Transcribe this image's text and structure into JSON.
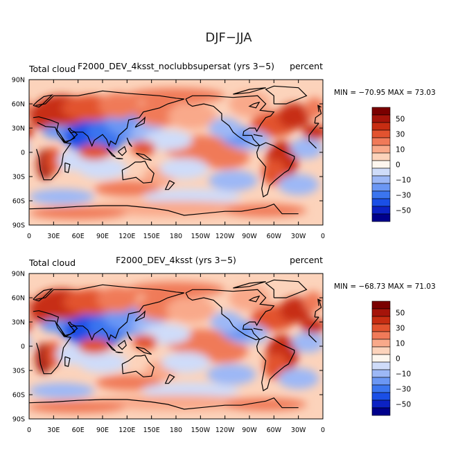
{
  "figure_title": "DJF−JJA",
  "colors": {
    "levels": [
      "#00008b",
      "#0c22c4",
      "#1a4fe6",
      "#3b75ef",
      "#6b97f4",
      "#9db8f6",
      "#cfdcf9",
      "#fdf6ee",
      "#fcd3bb",
      "#f9a98a",
      "#f07a59",
      "#e2532f",
      "#c72d12",
      "#a5140a",
      "#7a0000"
    ],
    "land_outline": "#000000"
  },
  "chart_data": [
    {
      "type": "heatmap",
      "title_left": "Total cloud",
      "title_center": "F2000_DEV_4ksst_noclubbsupersat (yrs 3−5)",
      "title_right": "percent",
      "stats": "MIN = −70.95  MAX =   73.03",
      "x_ticks": [
        "0",
        "30E",
        "60E",
        "90E",
        "120E",
        "150E",
        "180",
        "150W",
        "120W",
        "90W",
        "60W",
        "30W",
        "0"
      ],
      "y_ticks": [
        "90N",
        "60N",
        "30N",
        "0",
        "30S",
        "60S",
        "90S"
      ],
      "xlim": [
        0,
        360
      ],
      "ylim": [
        -90,
        90
      ],
      "colorbar_labels": [
        "50",
        "30",
        "10",
        "0",
        "−10",
        "−30",
        "−50"
      ],
      "colorbar_levels": [
        -60,
        -50,
        -40,
        -30,
        -20,
        -10,
        -5,
        0,
        5,
        10,
        20,
        30,
        40,
        50,
        60
      ]
    },
    {
      "type": "heatmap",
      "title_left": "Total cloud",
      "title_center": "F2000_DEV_4ksst (yrs 3−5)",
      "title_right": "percent",
      "stats": "MIN = −68.73  MAX =   71.03",
      "x_ticks": [
        "0",
        "30E",
        "60E",
        "90E",
        "120E",
        "150E",
        "180",
        "150W",
        "120W",
        "90W",
        "60W",
        "30W",
        "0"
      ],
      "y_ticks": [
        "90N",
        "60N",
        "30N",
        "0",
        "30S",
        "60S",
        "90S"
      ],
      "xlim": [
        0,
        360
      ],
      "ylim": [
        -90,
        90
      ],
      "colorbar_labels": [
        "50",
        "30",
        "10",
        "0",
        "−10",
        "−30",
        "−50"
      ],
      "colorbar_levels": [
        -60,
        -50,
        -40,
        -30,
        -20,
        -10,
        -5,
        0,
        5,
        10,
        20,
        30,
        40,
        50,
        60
      ]
    }
  ]
}
